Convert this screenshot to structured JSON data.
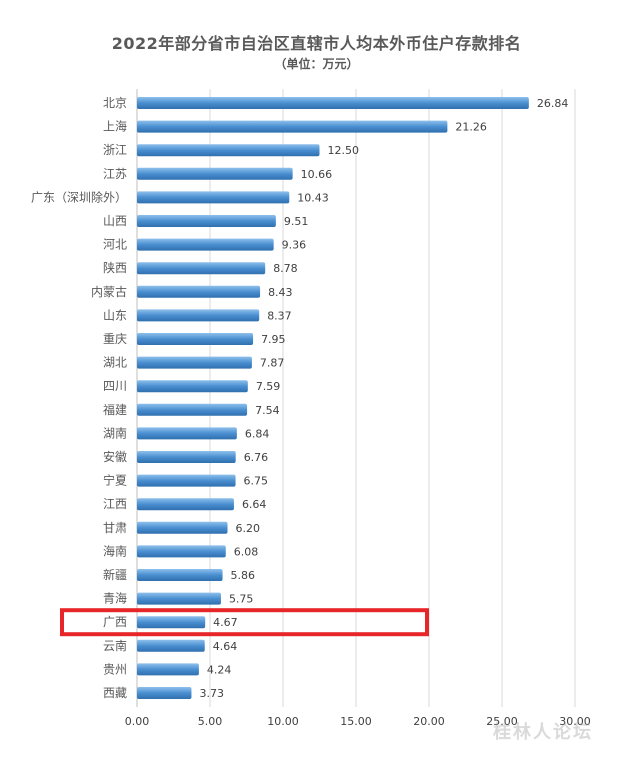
{
  "chart_data": {
    "type": "bar",
    "orientation": "horizontal",
    "title": "2022年部分省市自治区直辖市人均本外币住户存款排名",
    "subtitle": "（单位：万元）",
    "categories": [
      "北京",
      "上海",
      "浙江",
      "江苏",
      "广东（深圳除外）",
      "山西",
      "河北",
      "陕西",
      "内蒙古",
      "山东",
      "重庆",
      "湖北",
      "四川",
      "福建",
      "湖南",
      "安徽",
      "宁夏",
      "江西",
      "甘肃",
      "海南",
      "新疆",
      "青海",
      "广西",
      "云南",
      "贵州",
      "西藏"
    ],
    "values": [
      26.84,
      21.26,
      12.5,
      10.66,
      10.43,
      9.51,
      9.36,
      8.78,
      8.43,
      8.37,
      7.95,
      7.87,
      7.59,
      7.54,
      6.84,
      6.76,
      6.75,
      6.64,
      6.2,
      6.08,
      5.86,
      5.75,
      4.67,
      4.64,
      4.24,
      3.73
    ],
    "value_labels": [
      "26.84",
      "21.26",
      "12.50",
      "10.66",
      "10.43",
      "9.51",
      "9.36",
      "8.78",
      "8.43",
      "8.37",
      "7.95",
      "7.87",
      "7.59",
      "7.54",
      "6.84",
      "6.76",
      "6.75",
      "6.64",
      "6.20",
      "6.08",
      "5.86",
      "5.75",
      "4.67",
      "4.64",
      "4.24",
      "3.73"
    ],
    "xlim": [
      0,
      30
    ],
    "x_ticks": [
      "0.00",
      "5.00",
      "10.00",
      "15.00",
      "20.00",
      "25.00",
      "30.00"
    ],
    "grid": true,
    "highlighted_category": "广西",
    "colors": {
      "bar": "#4a8fd1",
      "bar_light": "#8ec0ec",
      "highlight_box": "#e8262a",
      "grid": "#d9d9d9"
    }
  },
  "watermark": "桂林人论坛"
}
